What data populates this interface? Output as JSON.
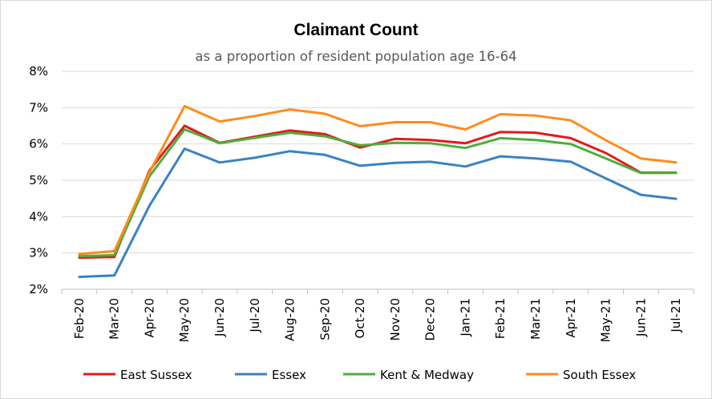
{
  "chart_data": {
    "type": "line",
    "title": "Claimant Count",
    "subtitle": "as a proportion of resident population age 16-64",
    "xlabel": "",
    "ylabel": "",
    "categories": [
      "Feb-20",
      "Mar-20",
      "Apr-20",
      "May-20",
      "Jun-20",
      "Jul-20",
      "Aug-20",
      "Sep-20",
      "Oct-20",
      "Nov-20",
      "Dec-20",
      "Jan-21",
      "Feb-21",
      "Mar-21",
      "Apr-21",
      "May-21",
      "Jun-21",
      "Jul-21"
    ],
    "ylim": [
      0.02,
      0.08
    ],
    "yticks": [
      "2%",
      "3%",
      "4%",
      "5%",
      "6%",
      "7%",
      "8%"
    ],
    "grid": true,
    "legend": "bottom",
    "series": [
      {
        "name": "East Sussex",
        "color": "#e31a1c",
        "values": [
          0.0287,
          0.0289,
          0.0527,
          0.065,
          0.0603,
          0.062,
          0.0637,
          0.0627,
          0.059,
          0.0614,
          0.0611,
          0.0602,
          0.0633,
          0.0631,
          0.0616,
          0.0575,
          0.0521,
          0.0521
        ]
      },
      {
        "name": "Essex",
        "color": "#3a82c4",
        "values": [
          0.0234,
          0.0238,
          0.043,
          0.0587,
          0.0549,
          0.0562,
          0.058,
          0.057,
          0.054,
          0.0548,
          0.0551,
          0.0538,
          0.0566,
          0.056,
          0.0551,
          0.0505,
          0.046,
          0.0449
        ]
      },
      {
        "name": "Kent & Medway",
        "color": "#4caf3d",
        "values": [
          0.0291,
          0.0294,
          0.0511,
          0.064,
          0.0602,
          0.0617,
          0.0631,
          0.0621,
          0.0596,
          0.0603,
          0.0602,
          0.0589,
          0.0616,
          0.0611,
          0.06,
          0.056,
          0.052,
          0.052
        ]
      },
      {
        "name": "South Essex",
        "color": "#ff8c1a",
        "values": [
          0.0297,
          0.0305,
          0.0522,
          0.0704,
          0.0662,
          0.0677,
          0.0695,
          0.0683,
          0.0649,
          0.066,
          0.066,
          0.064,
          0.0682,
          0.0678,
          0.0665,
          0.061,
          0.056,
          0.0549
        ]
      }
    ]
  }
}
